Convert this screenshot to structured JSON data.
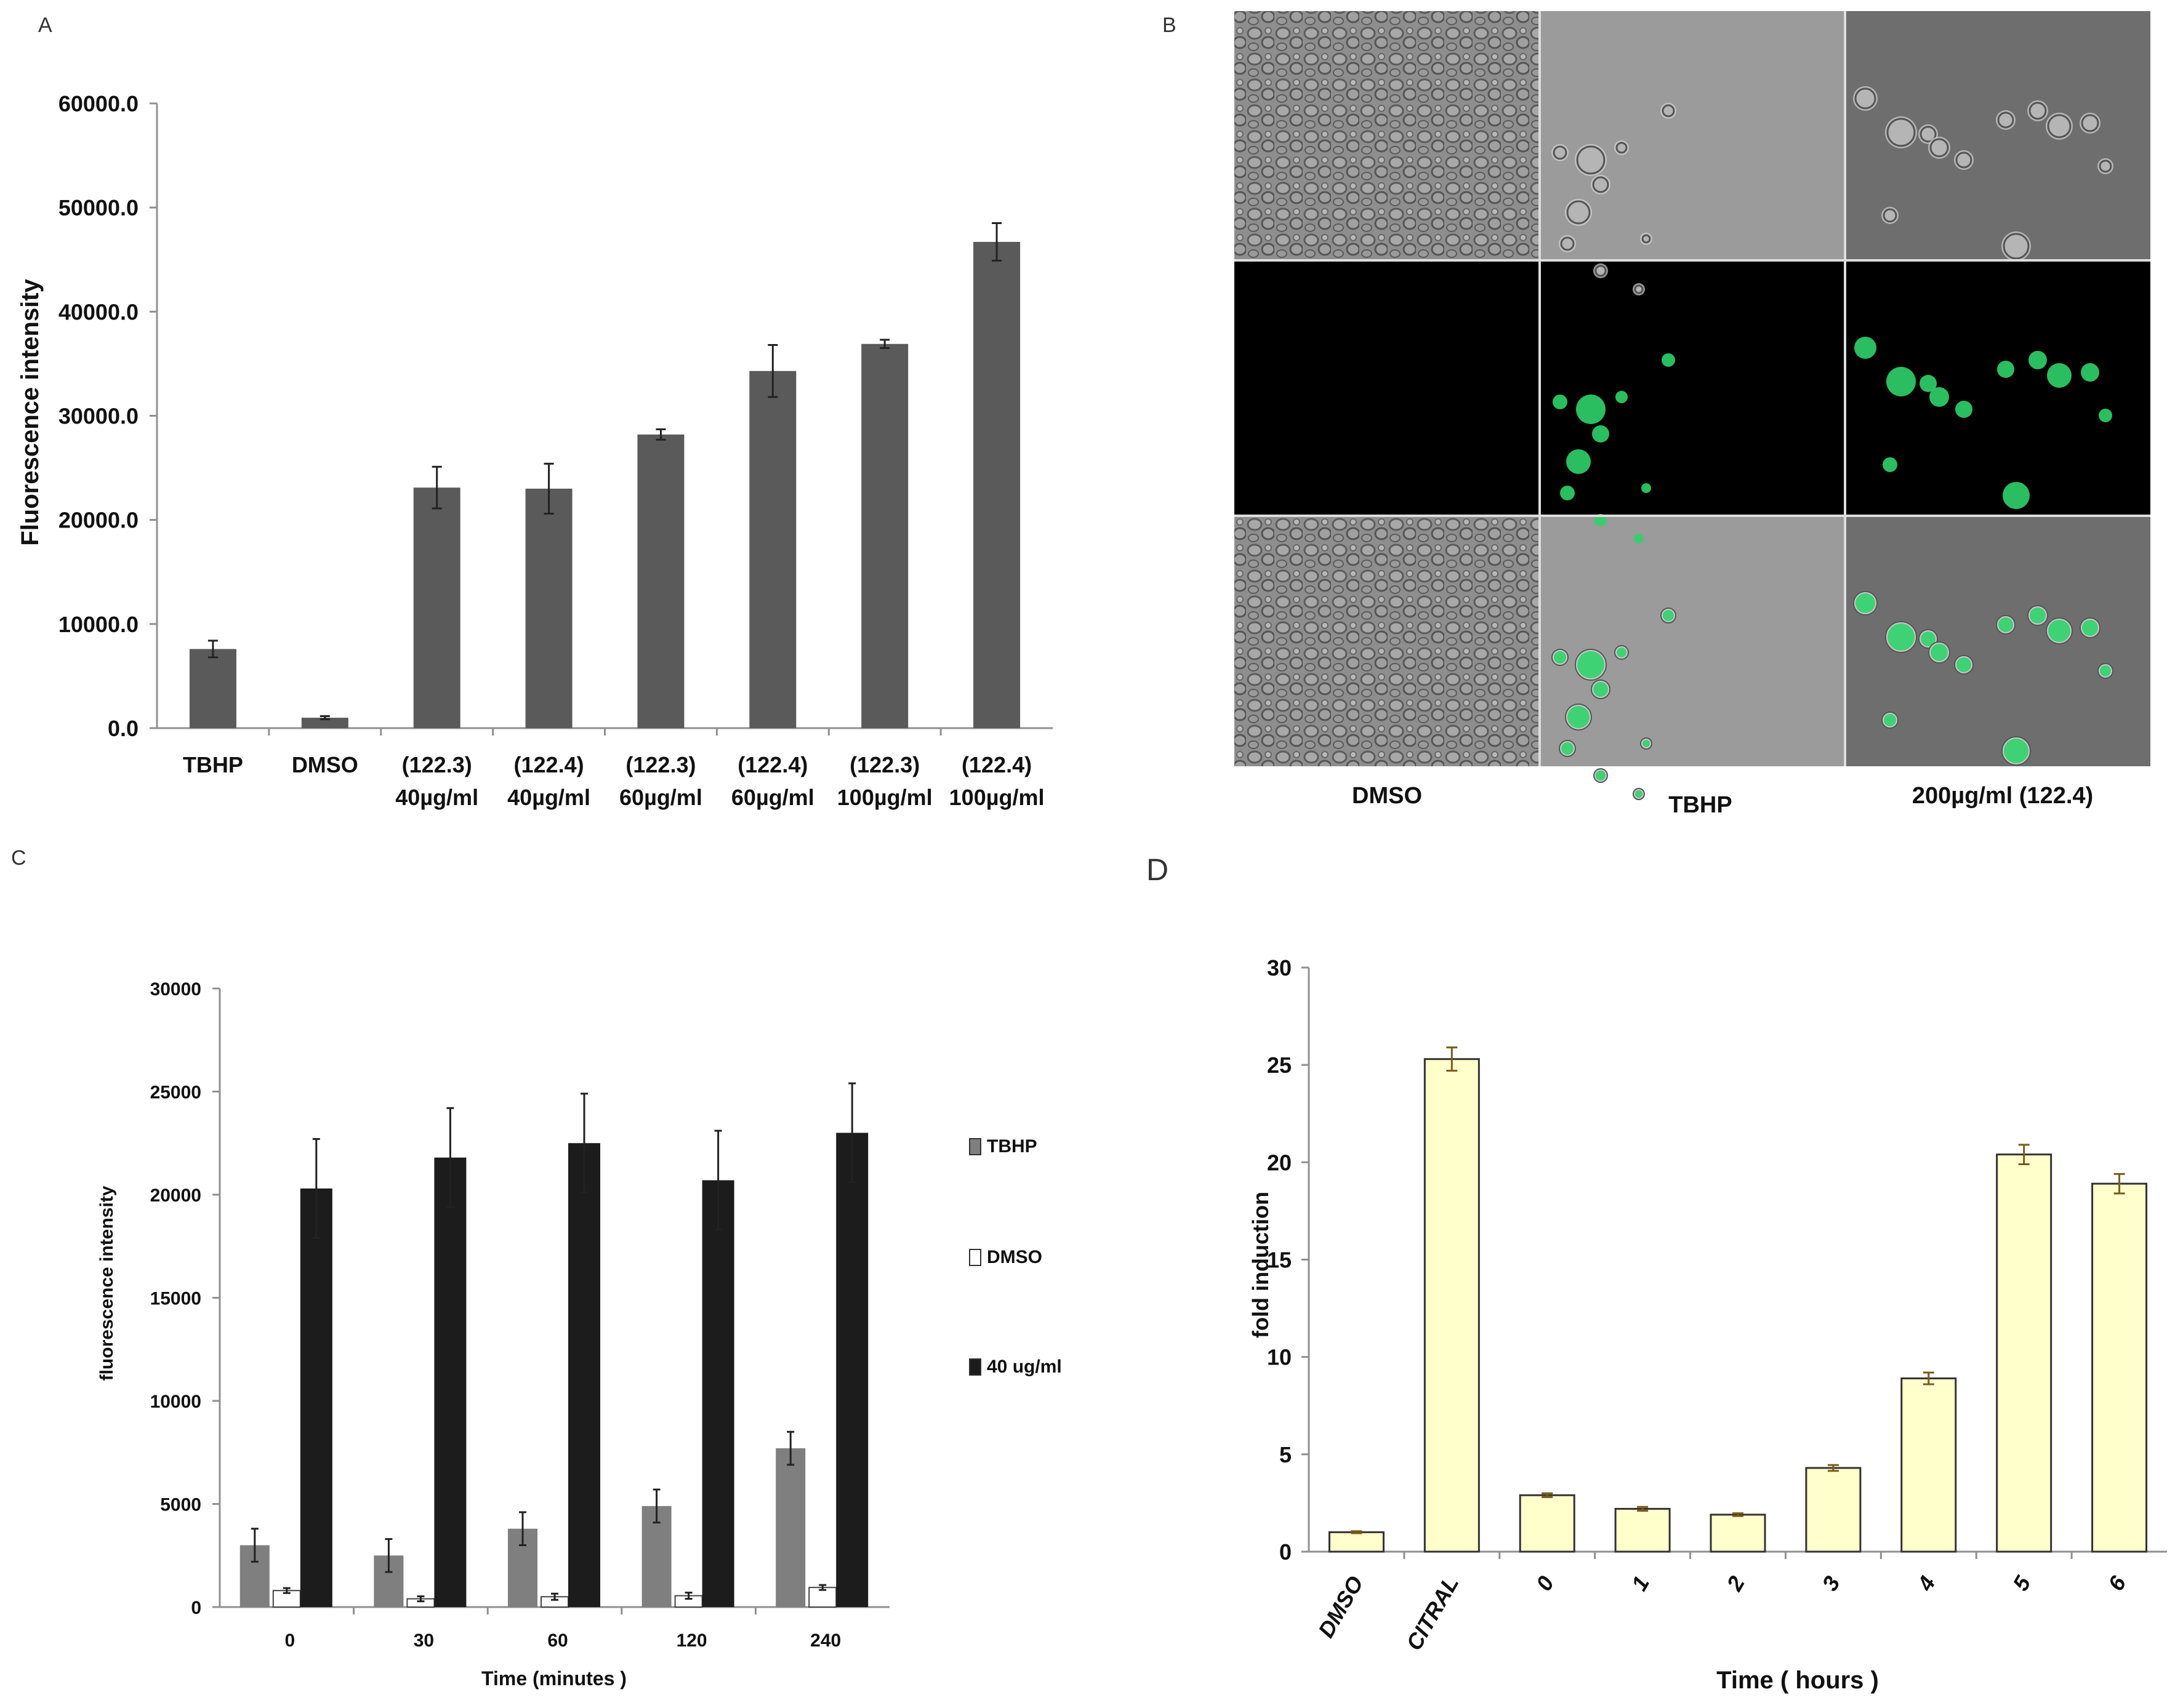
{
  "panels": {
    "a": "A",
    "b": "B",
    "c": "C",
    "d": "D"
  },
  "colors": {
    "panel_a_bar": "#5a5a5a",
    "tbhp": "#7f7f7f",
    "dmso": "#ffffff",
    "treated": "#1c1c1c",
    "panel_d_bar": "#ffffcc",
    "gfp": "#2fd36a"
  },
  "chart_data": [
    {
      "id": "A",
      "type": "bar",
      "ylabel": "Fluorescence intensity",
      "xlabel": "",
      "ylim": [
        0,
        60000
      ],
      "yticks": [
        "0.0",
        "10000.0",
        "20000.0",
        "30000.0",
        "40000.0",
        "50000.0",
        "60000.0"
      ],
      "categories": [
        [
          "TBHP"
        ],
        [
          "DMSO"
        ],
        [
          "(122.3)",
          "40µg/ml"
        ],
        [
          "(122.4)",
          "40µg/ml"
        ],
        [
          "(122.3)",
          "60µg/ml"
        ],
        [
          "(122.4)",
          "60µg/ml"
        ],
        [
          "(122.3)",
          "100µg/ml"
        ],
        [
          "(122.4)",
          "100µg/ml"
        ]
      ],
      "values": [
        7600,
        1000,
        23100,
        23000,
        28200,
        34300,
        36900,
        46700
      ],
      "errors": [
        800,
        150,
        2000,
        2400,
        500,
        2500,
        400,
        1800
      ]
    },
    {
      "id": "B",
      "type": "image-grid",
      "columns": [
        "DMSO",
        "TBHP",
        "200µg/ml (122.4)"
      ],
      "rows": [
        "brightfield",
        "green-fluorescence",
        "merged"
      ]
    },
    {
      "id": "C",
      "type": "bar",
      "ylabel": "fluorescence intensity",
      "xlabel": "Time (minutes )",
      "ylim": [
        0,
        30000
      ],
      "yticks": [
        "0",
        "5000",
        "10000",
        "15000",
        "20000",
        "25000",
        "30000"
      ],
      "categories": [
        "0",
        "30",
        "60",
        "120",
        "240"
      ],
      "series": [
        {
          "name": "TBHP",
          "values": [
            3000,
            2500,
            3800,
            4900,
            7700
          ],
          "errors": [
            800,
            800,
            800,
            800,
            800
          ]
        },
        {
          "name": "DMSO",
          "values": [
            800,
            400,
            500,
            550,
            950
          ],
          "errors": [
            120,
            120,
            150,
            150,
            120
          ]
        },
        {
          "name": "40 ug/ml",
          "values": [
            20300,
            21800,
            22500,
            20700,
            23000
          ],
          "errors": [
            2400,
            2400,
            2400,
            2400,
            2400
          ]
        }
      ]
    },
    {
      "id": "D",
      "type": "bar",
      "ylabel": "fold induction",
      "xlabel": "Time ( hours )",
      "ylim": [
        0,
        30
      ],
      "yticks": [
        "0",
        "5",
        "10",
        "15",
        "20",
        "25",
        "30"
      ],
      "categories": [
        "DMSO",
        "CITRAL",
        "0",
        "1",
        "2",
        "3",
        "4",
        "5",
        "6"
      ],
      "values": [
        1.0,
        25.3,
        2.9,
        2.2,
        1.9,
        4.3,
        8.9,
        20.4,
        18.9
      ],
      "errors": [
        0.05,
        0.6,
        0.1,
        0.1,
        0.07,
        0.15,
        0.3,
        0.5,
        0.5
      ]
    }
  ]
}
